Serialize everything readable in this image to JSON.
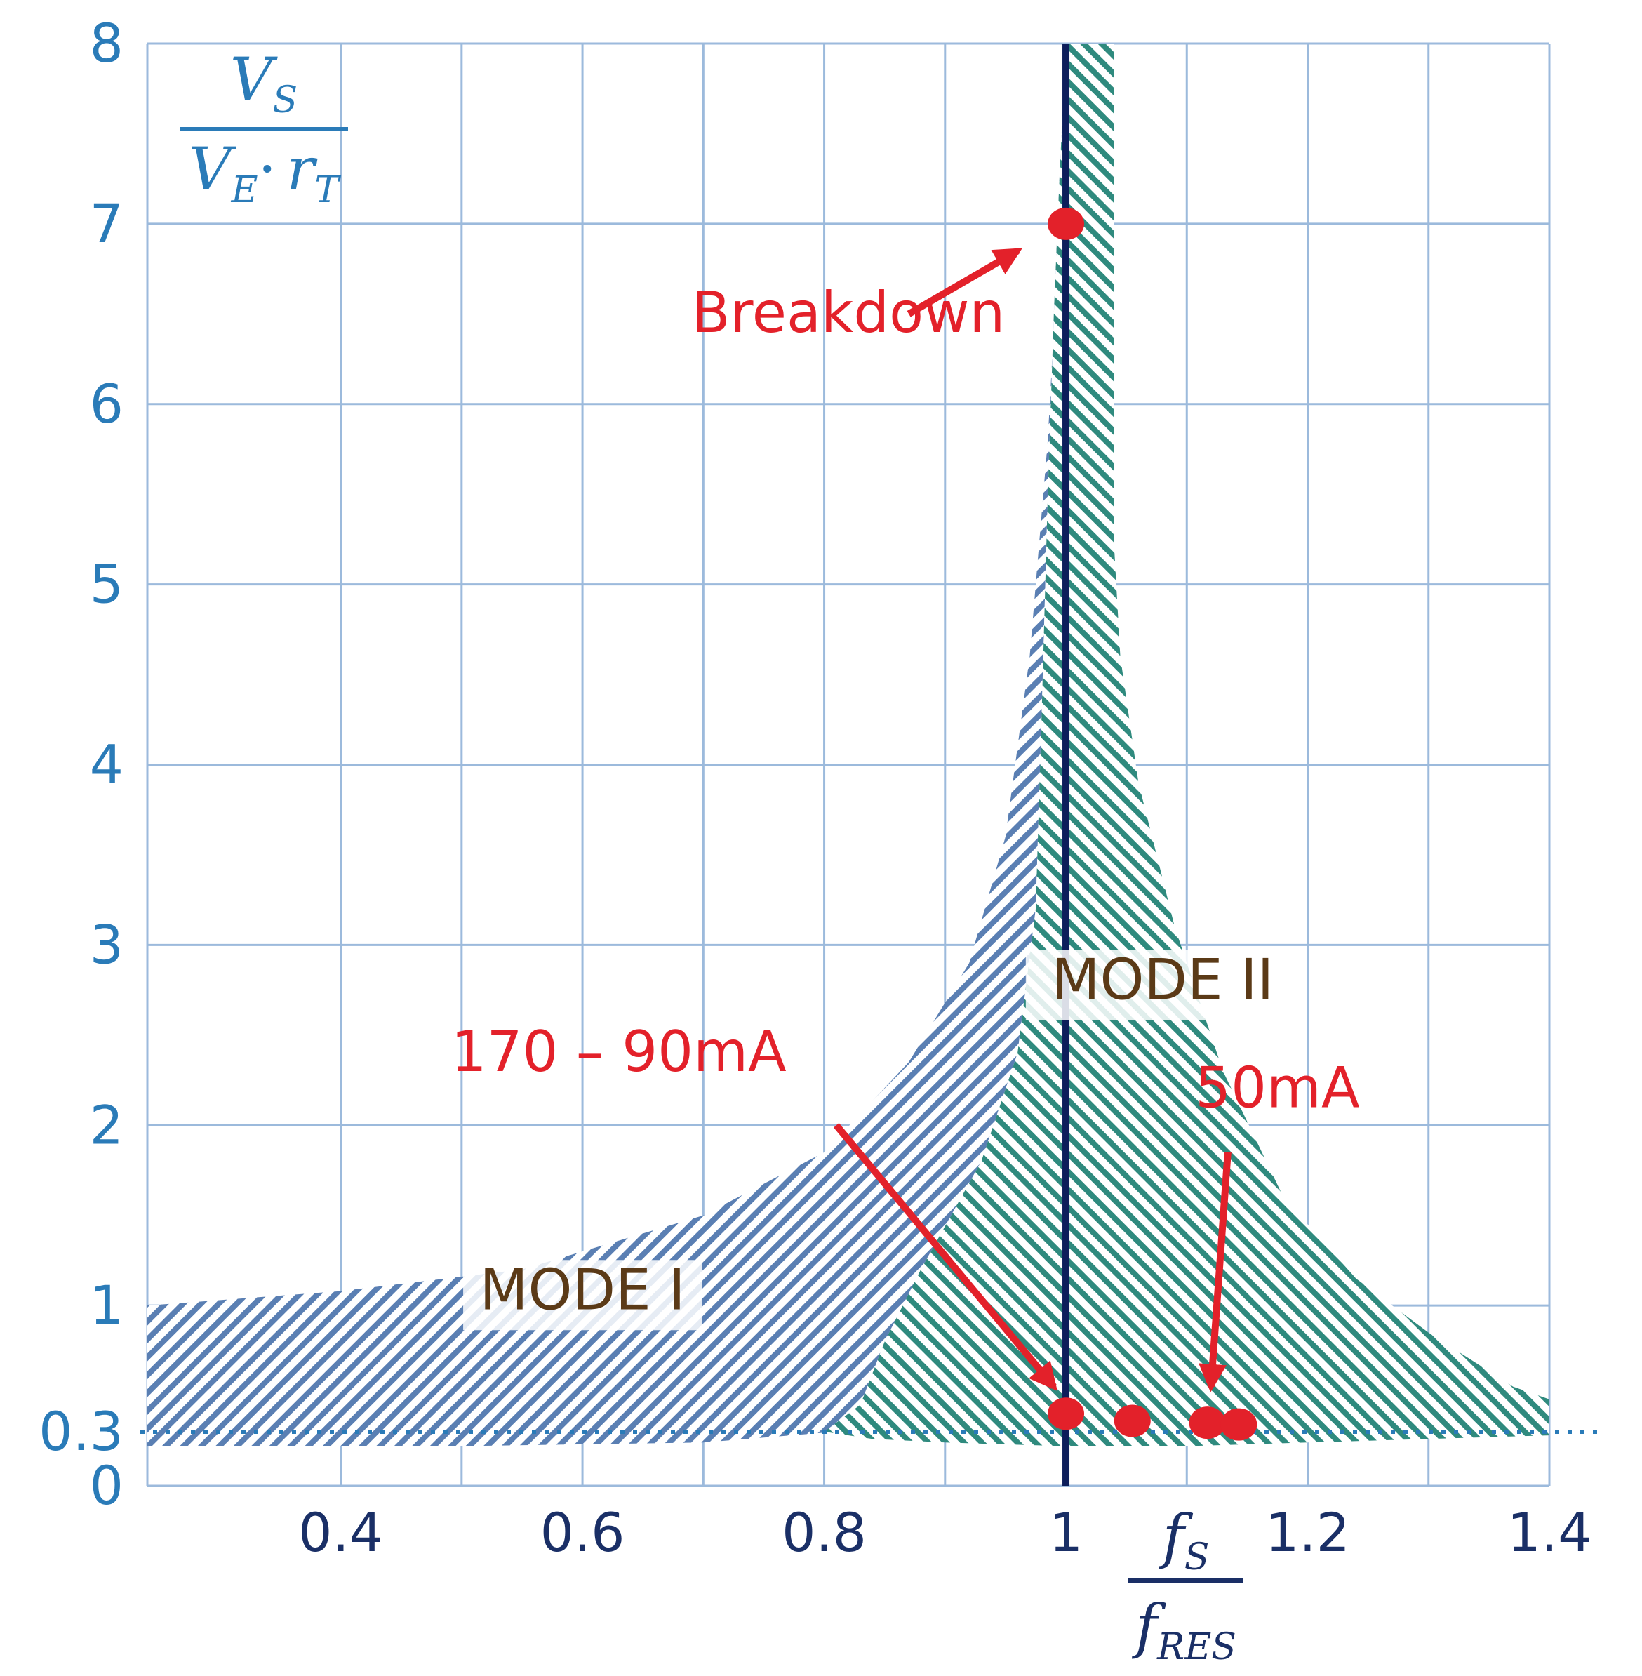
{
  "chart_data": {
    "type": "area",
    "title": "",
    "xlim": [
      0.24,
      1.4
    ],
    "ylim": [
      0,
      8
    ],
    "x_ticks": [
      {
        "value": 0.4,
        "label": "0.4"
      },
      {
        "value": 0.6,
        "label": "0.6"
      },
      {
        "value": 0.8,
        "label": "0.8"
      },
      {
        "value": 1.0,
        "label": "1"
      },
      {
        "value": 1.2,
        "label": "1.2"
      },
      {
        "value": 1.4,
        "label": "1.4"
      }
    ],
    "y_ticks": [
      {
        "value": 0,
        "label": "0"
      },
      {
        "value": 0.3,
        "label": "0.3"
      },
      {
        "value": 1,
        "label": "1"
      },
      {
        "value": 2,
        "label": "2"
      },
      {
        "value": 3,
        "label": "3"
      },
      {
        "value": 4,
        "label": "4"
      },
      {
        "value": 5,
        "label": "5"
      },
      {
        "value": 6,
        "label": "6"
      },
      {
        "value": 7,
        "label": "7"
      },
      {
        "value": 8,
        "label": "8"
      }
    ],
    "grid": true,
    "ylabel": {
      "num_main": "V",
      "num_sub": "S",
      "den_a": "V",
      "den_a_sub": "E",
      "den_dot": "·",
      "den_b": "r",
      "den_b_sub": "T"
    },
    "xlabel": {
      "num_main": "f",
      "num_sub": "S",
      "den_main": "f",
      "den_sub": "RES"
    },
    "resonance_x": 1.0,
    "reference_y": 0.3,
    "regions": [
      {
        "name": "MODE I",
        "upper": [
          [
            0.24,
            1.0
          ],
          [
            0.4,
            1.08
          ],
          [
            0.55,
            1.2
          ],
          [
            0.7,
            1.5
          ],
          [
            0.8,
            1.85
          ],
          [
            0.87,
            2.35
          ],
          [
            0.92,
            2.9
          ],
          [
            0.95,
            3.6
          ],
          [
            0.97,
            4.6
          ],
          [
            0.985,
            5.8
          ],
          [
            0.993,
            6.8
          ],
          [
            0.997,
            7.5
          ],
          [
            1.0,
            8.0
          ]
        ],
        "lower": [
          [
            1.0,
            8.0
          ],
          [
            0.995,
            7.3
          ],
          [
            0.99,
            6.5
          ],
          [
            0.985,
            5.5
          ],
          [
            0.98,
            4.3
          ],
          [
            0.975,
            3.2
          ],
          [
            0.96,
            2.4
          ],
          [
            0.93,
            1.8
          ],
          [
            0.88,
            1.2
          ],
          [
            0.85,
            0.8
          ],
          [
            0.83,
            0.45
          ],
          [
            0.81,
            0.3
          ],
          [
            0.7,
            0.24
          ],
          [
            0.5,
            0.22
          ],
          [
            0.24,
            0.22
          ]
        ]
      },
      {
        "name": "MODE II",
        "upper": [
          [
            0.8,
            0.3
          ],
          [
            0.83,
            0.45
          ],
          [
            0.85,
            0.8
          ],
          [
            0.88,
            1.2
          ],
          [
            0.93,
            1.8
          ],
          [
            0.96,
            2.4
          ],
          [
            0.975,
            3.2
          ],
          [
            0.98,
            4.3
          ],
          [
            0.985,
            5.5
          ],
          [
            0.99,
            6.5
          ],
          [
            0.995,
            7.3
          ],
          [
            1.0,
            8.0
          ],
          [
            1.04,
            8.0
          ],
          [
            1.04,
            7.0
          ],
          [
            1.04,
            6.0
          ],
          [
            1.04,
            5.2
          ],
          [
            1.045,
            4.6
          ],
          [
            1.06,
            3.9
          ],
          [
            1.09,
            3.1
          ],
          [
            1.13,
            2.3
          ],
          [
            1.18,
            1.6
          ],
          [
            1.24,
            1.15
          ],
          [
            1.3,
            0.85
          ],
          [
            1.37,
            0.55
          ],
          [
            1.4,
            0.48
          ]
        ],
        "lower": [
          [
            1.4,
            0.48
          ],
          [
            1.4,
            0.28
          ],
          [
            1.3,
            0.26
          ],
          [
            1.2,
            0.24
          ],
          [
            1.1,
            0.22
          ],
          [
            1.0,
            0.22
          ],
          [
            0.9,
            0.24
          ],
          [
            0.84,
            0.26
          ],
          [
            0.8,
            0.3
          ]
        ]
      }
    ],
    "points": [
      {
        "x": 1.0,
        "y": 7.0,
        "label": "Breakdown"
      },
      {
        "x": 1.0,
        "y": 0.4
      },
      {
        "x": 1.055,
        "y": 0.36
      },
      {
        "x": 1.117,
        "y": 0.35
      },
      {
        "x": 1.143,
        "y": 0.34
      }
    ],
    "annotations": [
      {
        "text": "Breakdown",
        "x": 0.82,
        "y": 6.4,
        "arrow_from": [
          0.87,
          6.5
        ],
        "arrow_to": [
          0.96,
          6.85
        ]
      },
      {
        "text": "170 – 90mA",
        "x": 0.63,
        "y": 2.3,
        "arrow_from": [
          0.81,
          2.0
        ],
        "arrow_to": [
          0.99,
          0.55
        ]
      },
      {
        "text": "50mA",
        "x": 1.175,
        "y": 2.1,
        "arrow_from": [
          1.134,
          1.85
        ],
        "arrow_to": [
          1.12,
          0.55
        ]
      }
    ],
    "mode_labels": [
      {
        "text": "MODE I",
        "x": 0.6,
        "y": 0.98
      },
      {
        "text": "MODE II",
        "x": 1.08,
        "y": 2.7
      }
    ],
    "colors": {
      "grid": "#9cbadc",
      "tick_y": "#2a7bb8",
      "tick_x": "#1a2f66",
      "mode1_hatch": "#5a7fb3",
      "mode2_hatch": "#2f8a7e",
      "resonance_line": "#0d1e5b",
      "markers": "#e3212a",
      "mode_text": "#5b3a17"
    }
  }
}
